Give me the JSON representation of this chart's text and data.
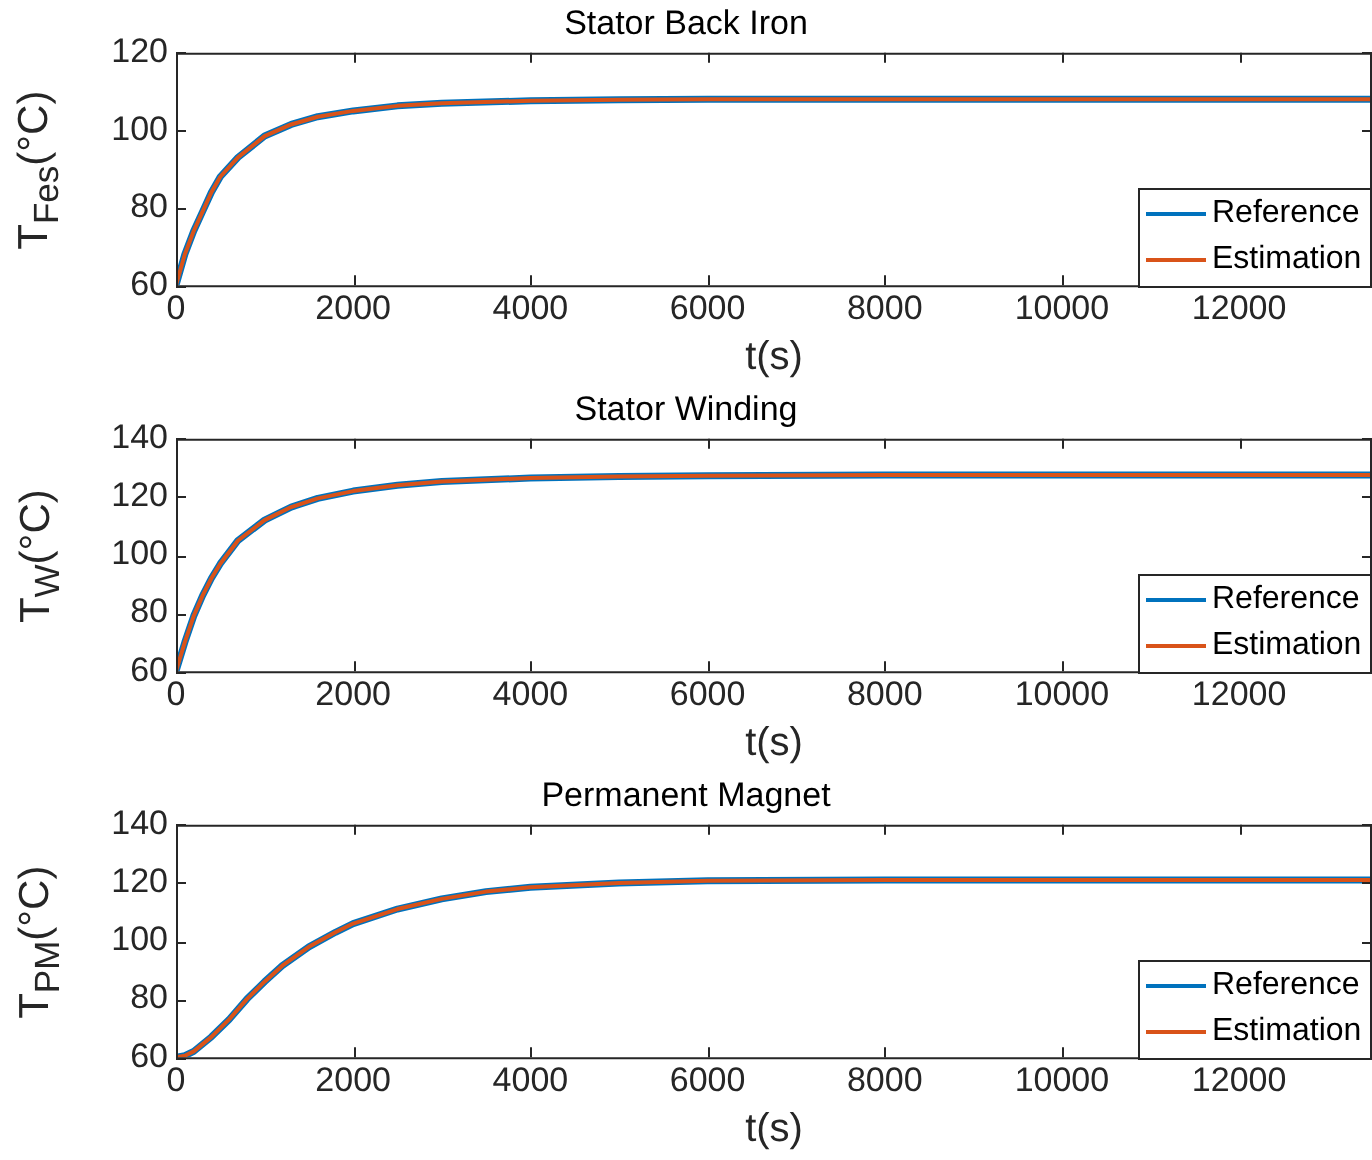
{
  "chart_data": [
    {
      "type": "line",
      "title": "Stator Back Iron",
      "xlabel": "t(s)",
      "ylabel": "T$_{Fes}$(°C)",
      "xlim": [
        0,
        13500
      ],
      "xticks": [
        0,
        2000,
        4000,
        6000,
        8000,
        10000,
        12000
      ],
      "ylim": [
        60,
        120
      ],
      "yticks": [
        60,
        80,
        100,
        120
      ],
      "grid": false,
      "legend": "bottom right",
      "marker": "none",
      "line_style": "solid",
      "x": [
        0,
        100,
        200,
        300,
        400,
        500,
        700,
        1000,
        1300,
        1600,
        2000,
        2500,
        3000,
        4000,
        5000,
        6000,
        8000,
        10000,
        12000,
        13500
      ],
      "series": [
        {
          "name": "Reference",
          "color": "#0072bd",
          "values": [
            60,
            68,
            74,
            79,
            84,
            88,
            93,
            98.5,
            101.5,
            103.5,
            105,
            106.3,
            107,
            107.6,
            107.9,
            108,
            108,
            108,
            108,
            108
          ]
        },
        {
          "name": "Estimation",
          "color": "#d95319",
          "values": [
            60,
            68,
            74,
            79,
            84,
            88,
            93,
            98.5,
            101.5,
            103.5,
            105,
            106.3,
            107,
            107.6,
            107.9,
            108,
            108,
            108,
            108,
            108
          ]
        }
      ]
    },
    {
      "type": "line",
      "title": "Stator Winding",
      "xlabel": "t(s)",
      "ylabel": "T$_{W}$(°C)",
      "xlim": [
        0,
        13500
      ],
      "xticks": [
        0,
        2000,
        4000,
        6000,
        8000,
        10000,
        12000
      ],
      "ylim": [
        60,
        140
      ],
      "yticks": [
        60,
        80,
        100,
        120,
        140
      ],
      "grid": false,
      "legend": "bottom right",
      "marker": "none",
      "line_style": "solid",
      "x": [
        0,
        100,
        200,
        300,
        400,
        500,
        700,
        1000,
        1300,
        1600,
        2000,
        2500,
        3000,
        4000,
        5000,
        6000,
        8000,
        10000,
        12000,
        13500
      ],
      "series": [
        {
          "name": "Reference",
          "color": "#0072bd",
          "values": [
            60,
            70,
            79,
            86,
            92,
            97,
            105,
            112,
            116.5,
            119.5,
            122,
            124,
            125.3,
            126.5,
            127,
            127.3,
            127.5,
            127.5,
            127.5,
            127.5
          ]
        },
        {
          "name": "Estimation",
          "color": "#d95319",
          "values": [
            60,
            70,
            79,
            86,
            92,
            97,
            105,
            112,
            116.5,
            119.5,
            122,
            124,
            125.3,
            126.5,
            127,
            127.3,
            127.5,
            127.5,
            127.5,
            127.5
          ]
        }
      ]
    },
    {
      "type": "line",
      "title": "Permanent Magnet",
      "xlabel": "t(s)",
      "ylabel": "T$_{PM}$(°C)",
      "xlim": [
        0,
        13500
      ],
      "xticks": [
        0,
        2000,
        4000,
        6000,
        8000,
        10000,
        12000
      ],
      "ylim": [
        60,
        140
      ],
      "yticks": [
        60,
        80,
        100,
        120,
        140
      ],
      "grid": false,
      "legend": "bottom right",
      "marker": "none",
      "line_style": "solid",
      "x": [
        0,
        100,
        200,
        400,
        600,
        800,
        1000,
        1200,
        1500,
        1800,
        2000,
        2500,
        3000,
        3500,
        4000,
        5000,
        6000,
        8000,
        10000,
        12000,
        13500
      ],
      "series": [
        {
          "name": "Reference",
          "color": "#0072bd",
          "values": [
            60,
            60.5,
            62,
            67,
            73,
            80,
            86,
            91.5,
            98,
            103,
            106,
            111,
            114.5,
            117,
            118.5,
            120,
            120.7,
            121,
            121,
            121,
            121
          ]
        },
        {
          "name": "Estimation",
          "color": "#d95319",
          "values": [
            60,
            60.5,
            62,
            67,
            73,
            80,
            86,
            91.5,
            98,
            103,
            106,
            111,
            114.5,
            117,
            118.5,
            120,
            120.7,
            121,
            121,
            121,
            121
          ]
        }
      ]
    }
  ]
}
